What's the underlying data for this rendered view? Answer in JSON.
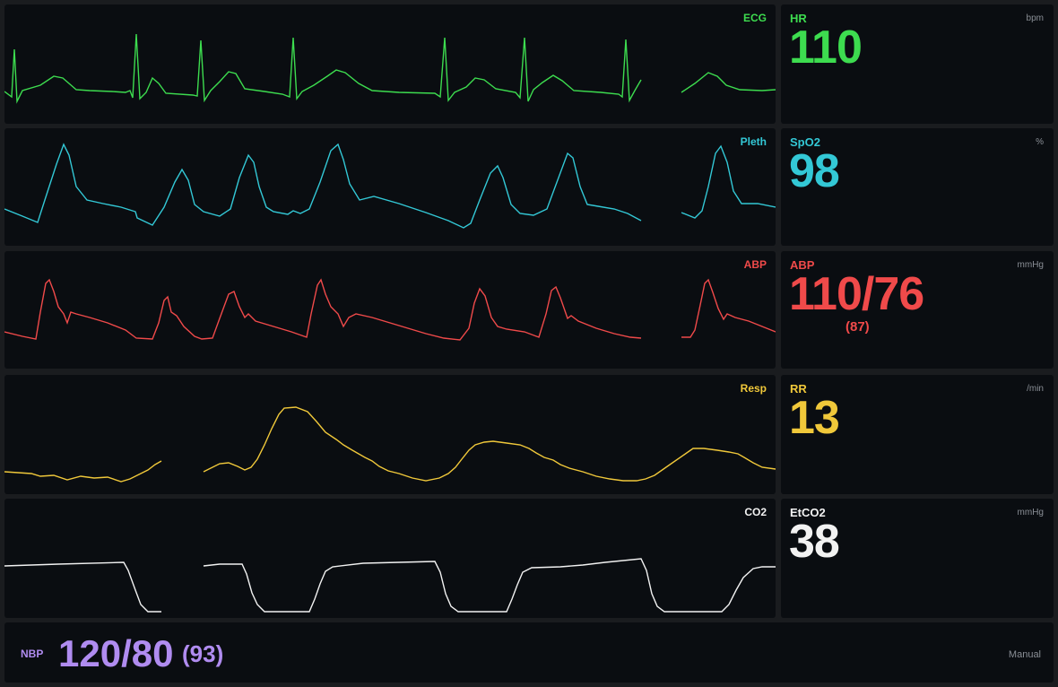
{
  "colors": {
    "ecg": "#3ddc4f",
    "pleth": "#33c8d6",
    "abp": "#f04a4a",
    "resp": "#f0c83a",
    "co2": "#f2f2f2",
    "nbp": "#b08cf0",
    "unit": "#8a8f96"
  },
  "waves": {
    "ecg": {
      "label": "ECG"
    },
    "pleth": {
      "label": "Pleth"
    },
    "abp": {
      "label": "ABP"
    },
    "resp": {
      "label": "Resp"
    },
    "co2": {
      "label": "CO2"
    }
  },
  "numerics": {
    "hr": {
      "label": "HR",
      "unit": "bpm",
      "value": "110"
    },
    "spo2": {
      "label": "SpO2",
      "unit": "%",
      "value": "98"
    },
    "abp": {
      "label": "ABP",
      "unit": "mmHg",
      "value": "110/76",
      "mean": "(87)"
    },
    "rr": {
      "label": "RR",
      "unit": "/min",
      "value": "13"
    },
    "etco2": {
      "label": "EtCO2",
      "unit": "mmHg",
      "value": "38"
    }
  },
  "nbp": {
    "label": "NBP",
    "value": "120/80",
    "mean": "(93)",
    "mode": "Manual"
  }
}
